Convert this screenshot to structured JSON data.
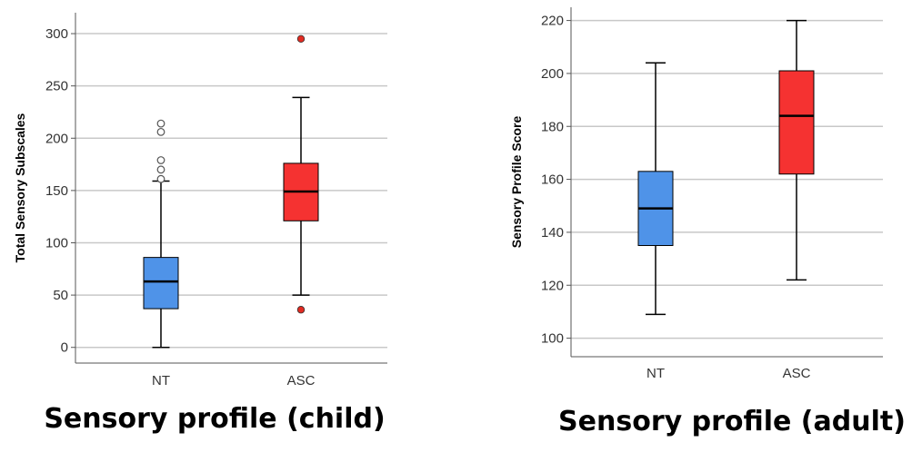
{
  "chart_data": [
    {
      "type": "box",
      "title": "Sensory profile (child)",
      "xlabel": "",
      "ylabel": "Total Sensory Subscales",
      "ylim": [
        -15,
        320
      ],
      "yticks": [
        0,
        50,
        100,
        150,
        200,
        250,
        300
      ],
      "ytick_labels": [
        "0",
        "50",
        "100",
        "150",
        "200",
        "250",
        "300"
      ],
      "grid": true,
      "categories": [
        "NT",
        "ASC"
      ],
      "boxes": [
        {
          "category": "NT",
          "min": 0,
          "q1": 37,
          "median": 63,
          "q3": 86,
          "max": 159,
          "fill": "#4f93e8",
          "outliers": [
            161,
            170,
            179,
            206,
            214
          ],
          "outlier_style": "open"
        },
        {
          "category": "ASC",
          "min": 50,
          "q1": 121,
          "median": 149,
          "q3": 176,
          "max": 239,
          "fill": "#f53231",
          "outliers": [
            295,
            36
          ],
          "outlier_style": "filled",
          "outlier_fill": "#e22b22"
        }
      ]
    },
    {
      "type": "box",
      "title": "Sensory profile (adult)",
      "xlabel": "",
      "ylabel": "Sensory Profile Score",
      "ylim": [
        93,
        225
      ],
      "yticks": [
        100,
        120,
        140,
        160,
        180,
        200,
        220
      ],
      "ytick_labels": [
        "100",
        "120",
        "140",
        "160",
        "180",
        "200",
        "220"
      ],
      "grid": true,
      "categories": [
        "NT",
        "ASC"
      ],
      "boxes": [
        {
          "category": "NT",
          "min": 109,
          "q1": 135,
          "median": 149,
          "q3": 163,
          "max": 204,
          "fill": "#4f93e8",
          "outliers": []
        },
        {
          "category": "ASC",
          "min": 122,
          "q1": 162,
          "median": 184,
          "q3": 201,
          "max": 220,
          "fill": "#f53231",
          "outliers": []
        }
      ]
    }
  ]
}
